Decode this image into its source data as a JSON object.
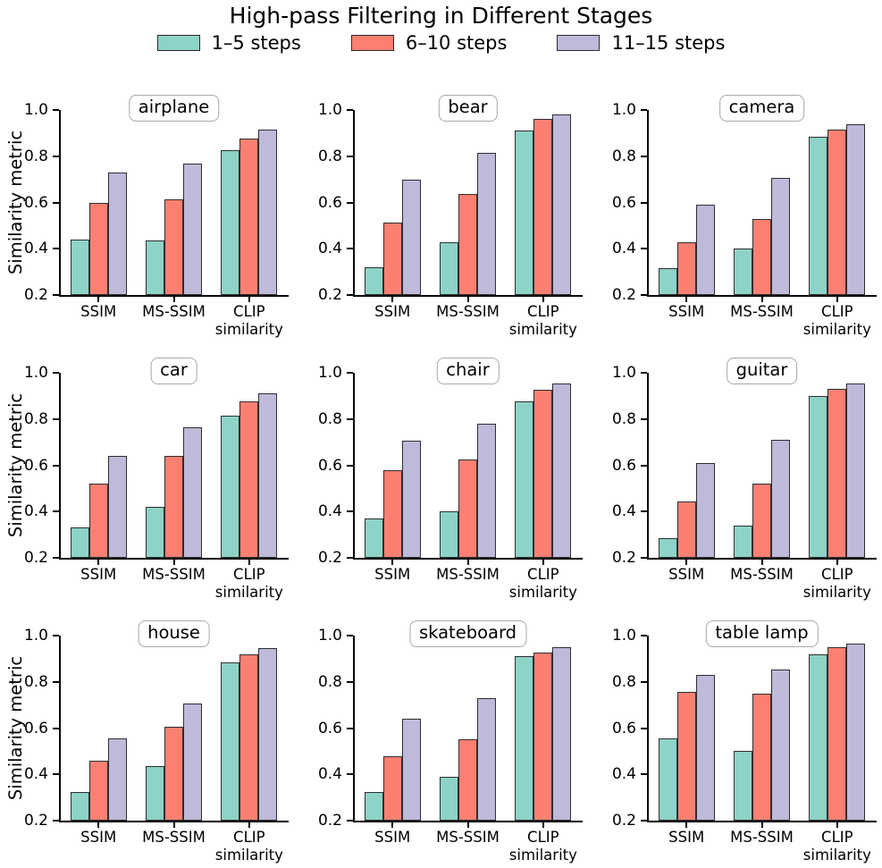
{
  "chart_data": {
    "type": "bar",
    "title": "High-pass Filtering in Different Stages",
    "ylabel": "Similarity metric",
    "categories": [
      "SSIM",
      "MS-SSIM",
      "CLIP\nsimilarity"
    ],
    "ylim": [
      0.2,
      1.0
    ],
    "yticks": [
      "1.0",
      "0.8",
      "0.6",
      "0.4",
      "0.2"
    ],
    "grid": false,
    "legend_position": "top",
    "series": [
      {
        "name": "1–5 steps",
        "color": "#8DD3C7"
      },
      {
        "name": "6–10 steps",
        "color": "#FB8072"
      },
      {
        "name": "11–15 steps",
        "color": "#BEBADA"
      }
    ],
    "subplots": [
      {
        "title": "airplane",
        "series_values": [
          [
            0.44,
            0.435,
            0.825
          ],
          [
            0.6,
            0.615,
            0.875
          ],
          [
            0.73,
            0.77,
            0.915
          ]
        ]
      },
      {
        "title": "bear",
        "series_values": [
          [
            0.32,
            0.43,
            0.91
          ],
          [
            0.515,
            0.635,
            0.96
          ],
          [
            0.7,
            0.815,
            0.98
          ]
        ]
      },
      {
        "title": "camera",
        "series_values": [
          [
            0.315,
            0.4,
            0.885
          ],
          [
            0.43,
            0.53,
            0.915
          ],
          [
            0.59,
            0.705,
            0.94
          ]
        ]
      },
      {
        "title": "car",
        "series_values": [
          [
            0.33,
            0.42,
            0.815
          ],
          [
            0.52,
            0.64,
            0.875
          ],
          [
            0.64,
            0.765,
            0.91
          ]
        ]
      },
      {
        "title": "chair",
        "series_values": [
          [
            0.37,
            0.4,
            0.875
          ],
          [
            0.58,
            0.625,
            0.925
          ],
          [
            0.705,
            0.78,
            0.955
          ]
        ]
      },
      {
        "title": "guitar",
        "series_values": [
          [
            0.285,
            0.34,
            0.9
          ],
          [
            0.445,
            0.52,
            0.93
          ],
          [
            0.61,
            0.71,
            0.955
          ]
        ]
      },
      {
        "title": "house",
        "series_values": [
          [
            0.325,
            0.435,
            0.885
          ],
          [
            0.46,
            0.605,
            0.92
          ],
          [
            0.555,
            0.705,
            0.945
          ]
        ]
      },
      {
        "title": "skateboard",
        "series_values": [
          [
            0.325,
            0.39,
            0.91
          ],
          [
            0.48,
            0.55,
            0.925
          ],
          [
            0.64,
            0.73,
            0.95
          ]
        ]
      },
      {
        "title": "table lamp",
        "series_values": [
          [
            0.555,
            0.5,
            0.92
          ],
          [
            0.755,
            0.75,
            0.95
          ],
          [
            0.83,
            0.855,
            0.965
          ]
        ]
      }
    ]
  }
}
